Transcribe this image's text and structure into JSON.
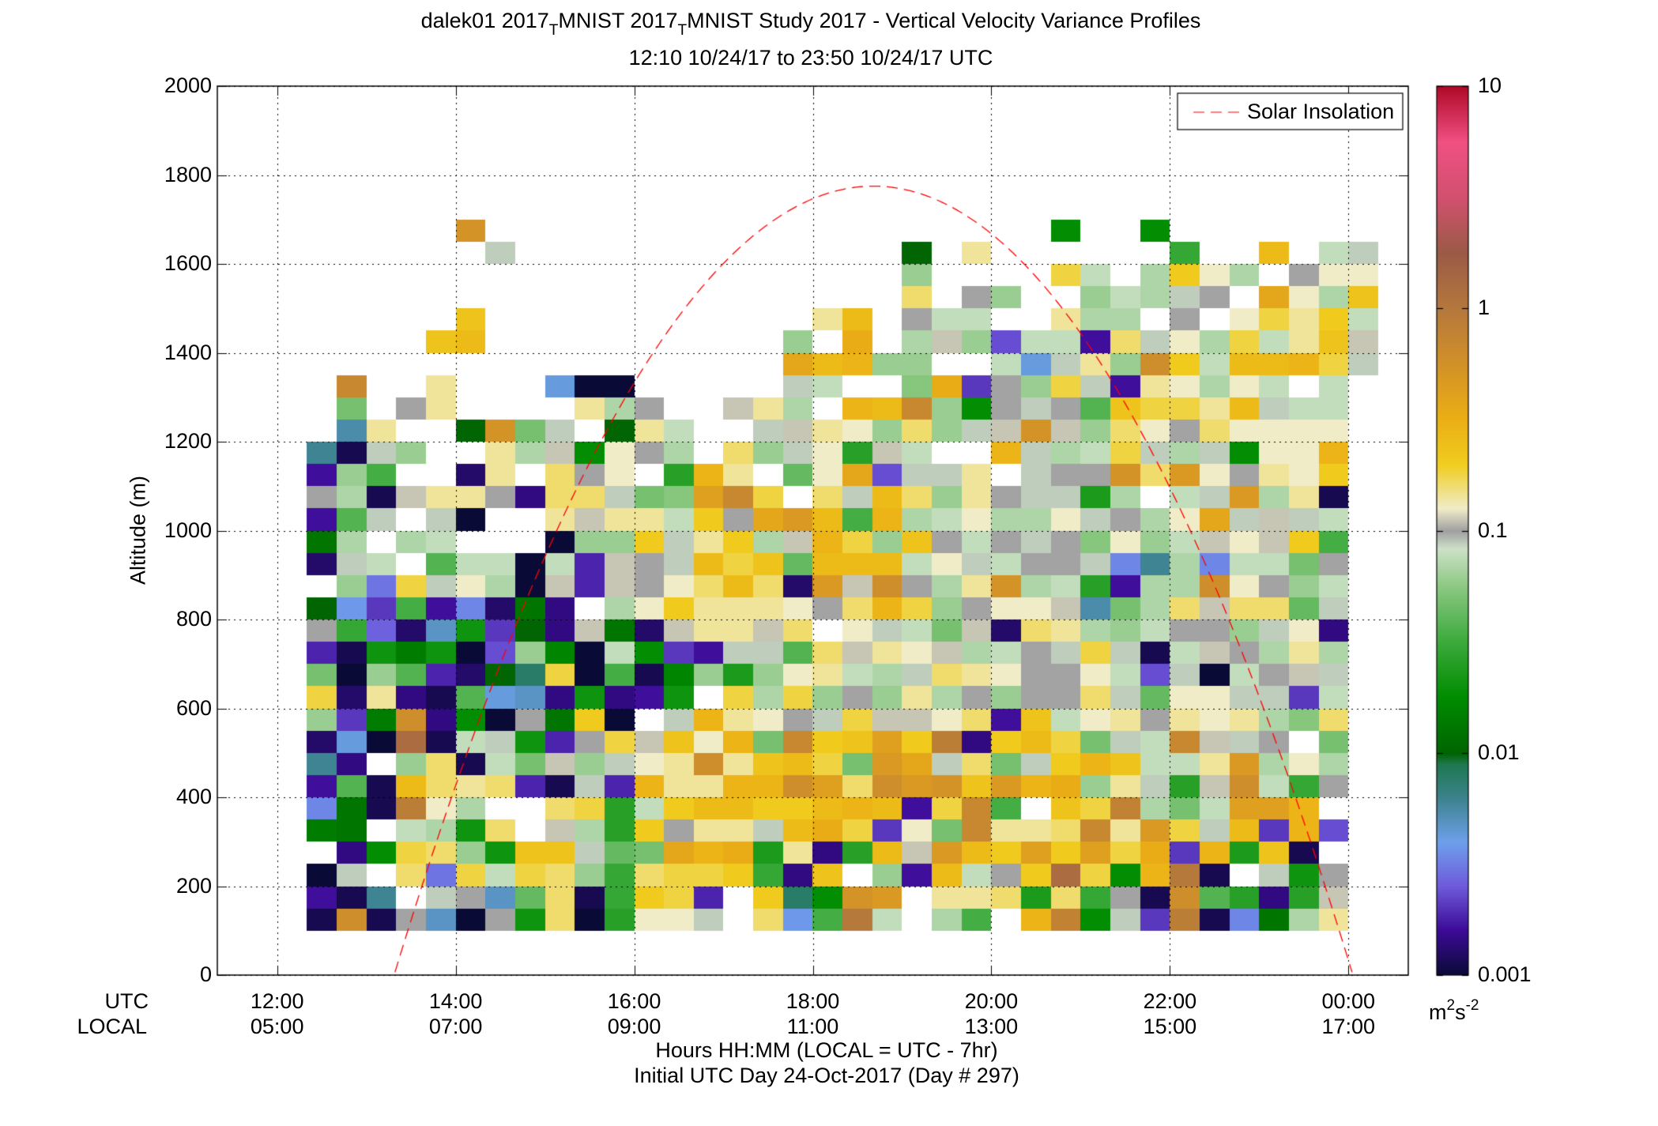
{
  "chart_data": {
    "type": "heatmap",
    "title": {
      "site": "dalek01 2017",
      "sub1": "T",
      "mid": "MNIST 2017",
      "sub2": "T",
      "rest": "MNIST Study 2017 - Vertical Velocity Variance Profiles"
    },
    "subtitle": "12:10 10/24/17 to 23:50 10/24/17  UTC",
    "ylabel": "Altitude (m)",
    "xlabel": "Hours HH:MM  (LOCAL = UTC - 7hr)",
    "xlabel2": "Initial UTC Day 24-Oct-2017 (Day # 297)",
    "x_row_labels": [
      "UTC",
      "LOCAL"
    ],
    "x_ticks_utc": [
      "12:00",
      "14:00",
      "16:00",
      "18:00",
      "20:00",
      "22:00",
      "00:00"
    ],
    "x_ticks_local": [
      "05:00",
      "07:00",
      "09:00",
      "11:00",
      "13:00",
      "15:00",
      "17:00"
    ],
    "x_tick_hours": [
      12,
      14,
      16,
      18,
      20,
      22,
      24
    ],
    "xlim_hours": [
      11.33,
      24.67
    ],
    "y_ticks": [
      "0",
      "200",
      "400",
      "600",
      "800",
      "1000",
      "1200",
      "1400",
      "1600",
      "1800",
      "2000"
    ],
    "ylim": [
      0,
      2000
    ],
    "grid": true,
    "colorbar": {
      "scale": "log",
      "range": [
        0.001,
        10
      ],
      "tick_labels": [
        "0.001",
        "0.01",
        "0.1",
        "1",
        "10"
      ],
      "units_base": "m",
      "units_exp1": "2",
      "units_mid": "s",
      "units_exp2": "-2"
    },
    "cells": {
      "t_start_hour": 12.5,
      "dt_hours": 0.3333,
      "z_start": 100,
      "dz": 50,
      "values": [
        "3t3eF2eRi2Tggd1iDVxc1bV1nvQd8w3CNbh",
        "63H1deFXi3Ukj71kJQsr1hhiSiUe3tWT5Tf",
        "2d1iBjcjiaUijjkU5l1a6mcekzjQnx31dRe",
        "15QjiaRlldXYpnoSh5Tmfrmkqkqjo8nSl31",
        "ON1cbRi1fbTkehhdmoj8gYuhhiuhrjdm8n9",
        "CN3wgb11ijTckmmkkmnm6juV1ljvbYcqqn1",
        "6W3mihi73d7nhhnntqitrslrnoahdTftcUe",
        "H51ai3cYfadghthlmjYrpdiYdknlcchrbgb",
        "4E2z3cdR7ejflgnYuklqkw5kmjYdcufde1Y",
        "a8Ot5Q2eNk01dnhgedjffgi6lcghehghbZi",
        "j4h53WEF5R56R1jbjaeahbeaeeidXggdd8c",
        "Y2aW74LJj0V3PaSaghcbdihgeegc9d0cefd",
        "73ROR09aP2cQ86ddWifhgfbcedjd3cfebhb",
        "eUA4FR8L5fN4fhhfi1gdcYf4ihbaceeadg5",
        "LD8V6C4N51bgkhhhgeinjaeggfGYbifiiXd",
        "1aBjdgb2f7fegimi4rftebhsbcT6bbtgeac",
        "4dc1Wcc2c7fedmjlXmmmcgdceedCHbCccYe",
        "Nb1bc1112aakdhkbfnjalecedeZgacfgfkV",
        "6Wd1d211hfhhckeprmVnbcgbbgdebgpdfdc",
        "eb3fhhe5iidYZquj1idmiaheddSb1cdrbh3",
        "6aV114h1ieg1Tnh1Xgp9ddh1deesirgehgk",
        "H3da11hbfQgeb1iadgTfc11ndbcjdbdQggn",
        "1Gh11LsYd1Lhc11dfhgaiadfsfaigeigggg",
        "1Y1eh1111hbe11fhb1nmuaQedeWljjhmdcc",
        "1u11h111E2211111dc11Zo8eajd6hgbgc1c",
        "1111111111111111pmnaa11cEdhatkcmmnjd",
        "1111lm1111111111a1o1bfa9cc6idgbjchlf",
        "11111l11111111111hm1ecc11hbb1e1gjhkc",
        "11111111111111111111i1ea11acbde1pgbl",
        "11111111111111111111a1111jc1bkgb1egg",
        "111111d1111111111111L1h111111U11m1cd",
        "11111s1111111111111111111Q11Q1111111"
      ]
    }
  },
  "legend": {
    "label": "Solar Insolation",
    "position": "top-right",
    "line_color": "#ff0000"
  }
}
